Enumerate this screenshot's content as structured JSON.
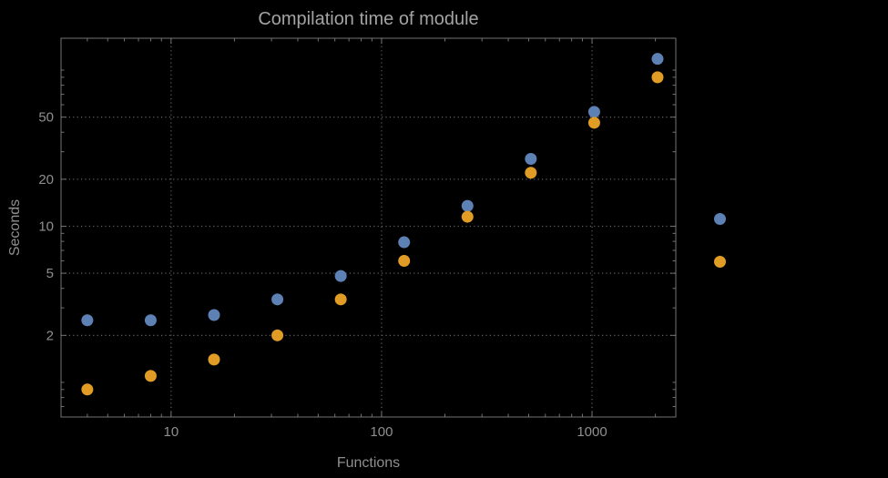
{
  "chart_data": {
    "type": "scatter",
    "title": "Compilation time of module",
    "xlabel": "Functions",
    "ylabel": "Seconds",
    "xscale": "log",
    "yscale": "log",
    "xlim": [
      3,
      2500
    ],
    "ylim": [
      0.6,
      160
    ],
    "grid": "dotted lines at major ticks",
    "legend_position": "right-outside, colored markers only (no visible text labels)",
    "x": [
      4,
      8,
      16,
      32,
      64,
      128,
      256,
      512,
      1024,
      2048
    ],
    "series": [
      {
        "name": "series-1-blue",
        "color": "#5E81B5",
        "values": [
          2.5,
          2.5,
          2.7,
          3.4,
          4.8,
          7.9,
          13.5,
          27,
          54,
          118
        ]
      },
      {
        "name": "series-2-orange",
        "color": "#E09C24",
        "values": [
          0.9,
          1.1,
          1.4,
          2.0,
          3.4,
          6.0,
          11.5,
          22,
          46,
          90
        ]
      }
    ],
    "x_ticks": [
      10,
      100,
      1000
    ],
    "x_tick_labels": [
      "10",
      "100",
      "1000"
    ],
    "y_ticks": [
      2,
      5,
      10,
      20,
      50
    ],
    "y_tick_labels": [
      "2",
      "5",
      "10",
      "20",
      "50"
    ]
  },
  "style": {
    "background_color": "#000000",
    "frame_color": "#737373",
    "grid_color": "#616161",
    "tick_label_color": "#8f8f8f",
    "title_color": "#a3a3a3",
    "axis_label_color": "#8f8f8f"
  }
}
